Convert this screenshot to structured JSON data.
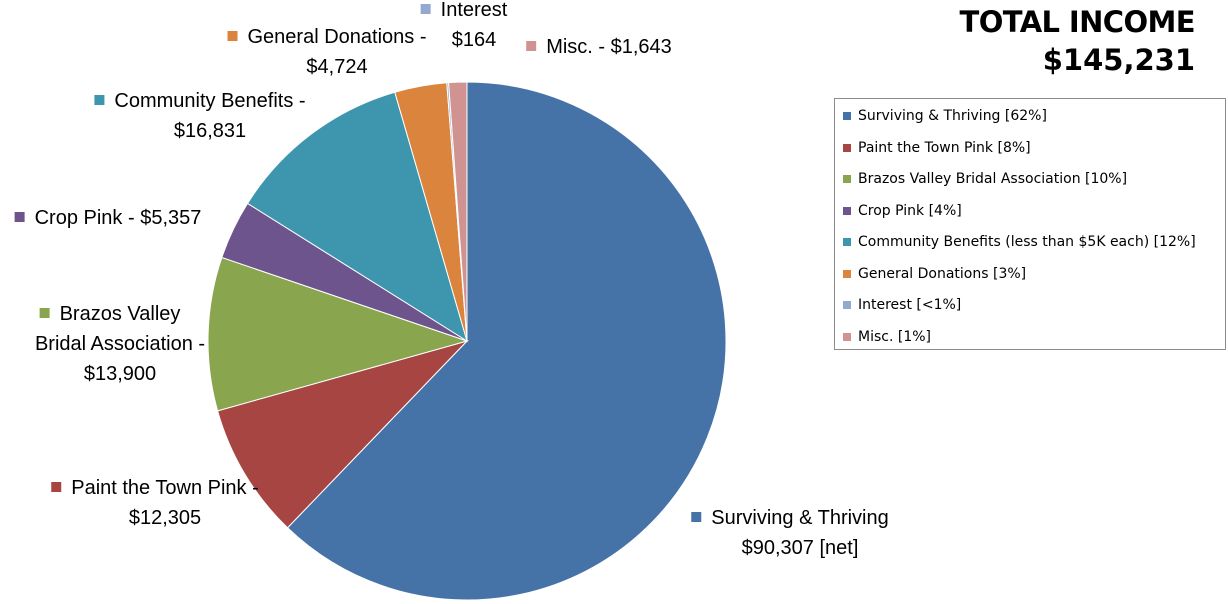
{
  "total": {
    "title": "TOTAL INCOME",
    "value": "$145,231"
  },
  "chart_data": {
    "type": "pie",
    "title": "",
    "currency": "USD",
    "slices": [
      {
        "name": "Surviving & Thriving",
        "value": 90307,
        "label_lines": [
          "Surviving  & Thriving",
          "$90,307 [net]"
        ],
        "legend": "Surviving & Thriving [62%]",
        "color": "#4673A7"
      },
      {
        "name": "Paint the Town Pink",
        "value": 12305,
        "label_lines": [
          "Paint the Town Pink -",
          "$12,305"
        ],
        "legend": "Paint the Town Pink [8%]",
        "color": "#A74543"
      },
      {
        "name": "Brazos Valley Bridal Association",
        "value": 13900,
        "label_lines": [
          "Brazos Valley",
          "Bridal Association -",
          "$13,900"
        ],
        "legend": "Brazos Valley Bridal Association [10%]",
        "color": "#89A54E"
      },
      {
        "name": "Crop Pink",
        "value": 5357,
        "label_lines": [
          "Crop Pink - $5,357"
        ],
        "legend": "Crop Pink [4%]",
        "color": "#6E548D"
      },
      {
        "name": "Community Benefits",
        "value": 16831,
        "label_lines": [
          "Community Benefits -",
          "$16,831"
        ],
        "legend": "Community Benefits (less than $5K each) [12%]",
        "color": "#3D96AE"
      },
      {
        "name": "General Donations",
        "value": 4724,
        "label_lines": [
          "General Donations -",
          "$4,724"
        ],
        "legend": "General Donations [3%]",
        "color": "#DB843D"
      },
      {
        "name": "Interest",
        "value": 164,
        "label_lines": [
          "Interest",
          "$164"
        ],
        "legend": "Interest [<1%]",
        "color": "#93A9CF"
      },
      {
        "name": "Misc.",
        "value": 1643,
        "label_lines": [
          "Misc. - $1,643"
        ],
        "legend": "Misc. [1%]",
        "color": "#D19392"
      }
    ],
    "legend_position": "right"
  }
}
